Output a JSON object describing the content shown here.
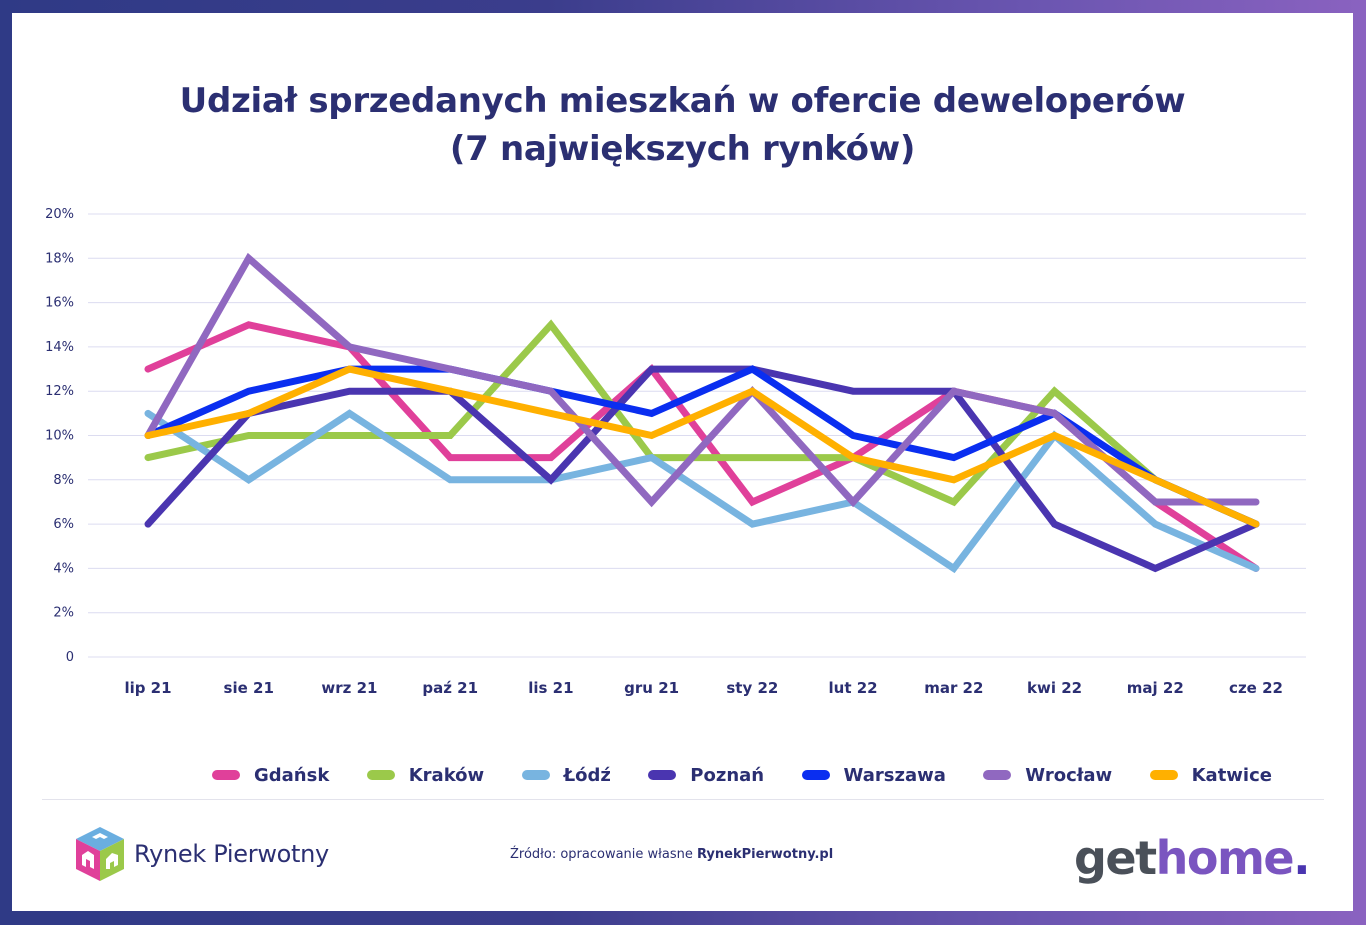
{
  "title_line1": "Udział sprzedanych mieszkań w ofercie deweloperów",
  "title_line2": "(7 największych rynków)",
  "footer": {
    "brand_left": "Rynek Pierwotny",
    "source_prefix": "Źródło: opracowanie własne ",
    "source_site": "RynekPierwotny.pl",
    "brand_right_part1": "get",
    "brand_right_part2": "home",
    "brand_right_part3": "."
  },
  "chart_data": {
    "type": "line",
    "title": "Udział sprzedanych mieszkań w ofercie deweloperów (7 największych rynków)",
    "xlabel": "",
    "ylabel": "",
    "ylim": [
      0,
      20
    ],
    "y_ticks": [
      "0",
      "2%",
      "4%",
      "6%",
      "8%",
      "10%",
      "12%",
      "14%",
      "16%",
      "18%",
      "20%"
    ],
    "y_tick_values": [
      0,
      2,
      4,
      6,
      8,
      10,
      12,
      14,
      16,
      18,
      20
    ],
    "grid": true,
    "legend_position": "bottom",
    "categories": [
      "lip 21",
      "sie 21",
      "wrz 21",
      "paź 21",
      "lis 21",
      "gru 21",
      "sty 22",
      "lut 22",
      "mar 22",
      "kwi 22",
      "maj 22",
      "cze 22"
    ],
    "series": [
      {
        "name": "Gdańsk",
        "color": "#e0409a",
        "values": [
          13,
          15,
          14,
          9,
          9,
          13,
          7,
          9,
          12,
          11,
          7,
          4
        ]
      },
      {
        "name": "Kraków",
        "color": "#9bc94a",
        "values": [
          9,
          10,
          10,
          10,
          15,
          9,
          9,
          9,
          7,
          12,
          8,
          6
        ]
      },
      {
        "name": "Łódź",
        "color": "#78b4e0",
        "values": [
          11,
          8,
          11,
          8,
          8,
          9,
          6,
          7,
          4,
          10,
          6,
          4
        ]
      },
      {
        "name": "Poznań",
        "color": "#4a35b0",
        "values": [
          6,
          11,
          12,
          12,
          8,
          13,
          13,
          12,
          12,
          6,
          4,
          6
        ]
      },
      {
        "name": "Warszawa",
        "color": "#0a2ef0",
        "values": [
          10,
          12,
          13,
          13,
          12,
          11,
          13,
          10,
          9,
          11,
          8,
          6
        ]
      },
      {
        "name": "Wrocław",
        "color": "#9068c0",
        "values": [
          10,
          18,
          14,
          13,
          12,
          7,
          12,
          7,
          12,
          11,
          7,
          7
        ]
      },
      {
        "name": "Katwice",
        "color": "#ffb000",
        "values": [
          10,
          11,
          13,
          12,
          11,
          10,
          12,
          9,
          8,
          10,
          8,
          6
        ]
      }
    ]
  }
}
